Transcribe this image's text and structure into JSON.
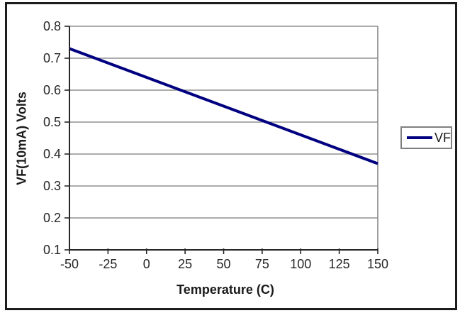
{
  "chart_data": {
    "type": "line",
    "title": "",
    "xlabel": "Temperature (C)",
    "ylabel": "VF(10mA) Volts",
    "xlim": [
      -50,
      150
    ],
    "ylim": [
      0.1,
      0.8
    ],
    "x_ticks": [
      -50,
      -25,
      0,
      25,
      50,
      75,
      100,
      125,
      150
    ],
    "x_tick_labels": [
      "-50",
      "-25",
      "0",
      "25",
      "50",
      "75",
      "100",
      "125",
      "150"
    ],
    "y_ticks": [
      0.1,
      0.2,
      0.3,
      0.4,
      0.5,
      0.6,
      0.7,
      0.8
    ],
    "y_tick_labels": [
      "0.1",
      "0.2",
      "0.3",
      "0.4",
      "0.5",
      "0.6",
      "0.7",
      "0.8"
    ],
    "grid": "horizontal-only",
    "legend": {
      "position": "right",
      "entries": [
        {
          "label": "VF",
          "color": "#000080"
        }
      ]
    },
    "series": [
      {
        "name": "VF",
        "color": "#000080",
        "x": [
          -50,
          -25,
          0,
          25,
          50,
          75,
          100,
          125,
          150
        ],
        "values": [
          0.73,
          0.685,
          0.64,
          0.595,
          0.55,
          0.505,
          0.46,
          0.415,
          0.37
        ]
      }
    ]
  },
  "colors": {
    "line": "#000080",
    "gridline": "#7a7a7a",
    "plot_border": "#808080",
    "axis": "#262626",
    "frame_border": "#1c1c1c",
    "background": "#ffffff",
    "text": "#262626"
  }
}
